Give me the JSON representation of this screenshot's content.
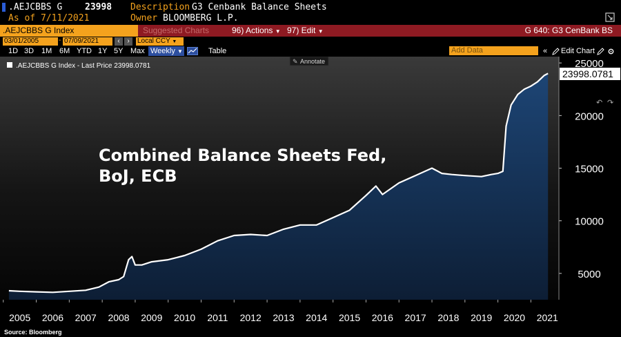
{
  "header": {
    "ticker": ".AEJCBBS G",
    "price": "23998",
    "as_of": "As of 7/11/2021",
    "description_label": "Description",
    "description": "G3 Cenbank Balance Sheets",
    "owner_label": "Owner",
    "owner": "BLOOMBERG L.P."
  },
  "menubar": {
    "security": ".AEJCBBS G Index",
    "suggested": "Suggested Charts",
    "actions": "96) Actions",
    "edit": "97) Edit",
    "chart_id": "G 640: G3 CenBank BS"
  },
  "daterow": {
    "start": "03/01/2005",
    "end": "07/09/2021",
    "currency": "Local CCY"
  },
  "toolbar": {
    "periods": [
      "1D",
      "3D",
      "1M",
      "6M",
      "YTD",
      "1Y",
      "5Y",
      "Max"
    ],
    "frequency": "Weekly",
    "table": "Table",
    "add_data": "Add Data",
    "edit_chart": "Edit Chart"
  },
  "legend": {
    "text": ".AEJCBBS G Index - Last Price 23998.0781",
    "annotate": "Annotate"
  },
  "colors": {
    "amber": "#f4a21d",
    "red_bar": "#8e1a22",
    "line": "#ffffff",
    "area_top": "#1d4575",
    "area_bottom": "#0d1e35"
  },
  "source": "Source: Bloomberg",
  "chart_data": {
    "type": "area",
    "title": "Combined Balance Sheets Fed,\nBoJ, ECB",
    "series": [
      {
        "name": ".AEJCBBS G Index",
        "x": [
          2005.17,
          2005.5,
          2006.0,
          2006.5,
          2007.0,
          2007.5,
          2007.9,
          2008.2,
          2008.5,
          2008.65,
          2008.8,
          2008.9,
          2009.0,
          2009.2,
          2009.5,
          2010.0,
          2010.5,
          2011.0,
          2011.5,
          2012.0,
          2012.5,
          2013.0,
          2013.5,
          2014.0,
          2014.5,
          2015.0,
          2015.5,
          2016.0,
          2016.3,
          2016.5,
          2017.0,
          2017.5,
          2018.0,
          2018.3,
          2018.6,
          2019.0,
          2019.5,
          2019.8,
          2020.0,
          2020.15,
          2020.25,
          2020.4,
          2020.6,
          2020.8,
          2021.0,
          2021.2,
          2021.4,
          2021.52
        ],
        "values": [
          3350,
          3300,
          3250,
          3200,
          3300,
          3400,
          3700,
          4200,
          4400,
          4700,
          6300,
          6600,
          5800,
          5800,
          6100,
          6300,
          6700,
          7300,
          8100,
          8600,
          8700,
          8600,
          9200,
          9600,
          9600,
          10300,
          11000,
          12400,
          13300,
          12500,
          13600,
          14300,
          15000,
          14500,
          14400,
          14300,
          14200,
          14400,
          14500,
          14700,
          19000,
          21000,
          22000,
          22500,
          22800,
          23200,
          23800,
          23998
        ]
      }
    ],
    "last_value_label": "23998.0781",
    "xlim": [
      2004.9,
      2021.85
    ],
    "ylim": [
      2500,
      25600
    ],
    "yticks": [
      5000,
      10000,
      15000,
      20000,
      25000
    ],
    "ytick_labels": [
      "5000",
      "10000",
      "15000",
      "20000",
      "25000"
    ],
    "xtick_labels": [
      "2005",
      "2006",
      "2007",
      "2008",
      "2009",
      "2010",
      "2011",
      "2012",
      "2013",
      "2014",
      "2015",
      "2016",
      "2017",
      "2018",
      "2019",
      "2020",
      "2021"
    ],
    "grid": false,
    "legend": "top-left"
  }
}
